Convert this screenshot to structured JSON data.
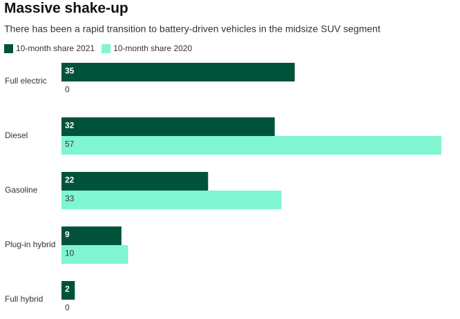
{
  "chart_data": {
    "type": "bar",
    "orientation": "horizontal",
    "title": "Massive shake-up",
    "subtitle": "There has been a rapid transition to battery-driven vehicles in the midsize SUV segment",
    "categories": [
      "Full electric",
      "Diesel",
      "Gasoline",
      "Plug-in hybrid",
      "Full hybrid"
    ],
    "series": [
      {
        "name": "10-month share 2021",
        "color": "#00533a",
        "values": [
          35,
          32,
          22,
          9,
          2
        ]
      },
      {
        "name": "10-month share 2020",
        "color": "#80f5d1",
        "values": [
          0,
          57,
          33,
          10,
          0
        ]
      }
    ]
  }
}
